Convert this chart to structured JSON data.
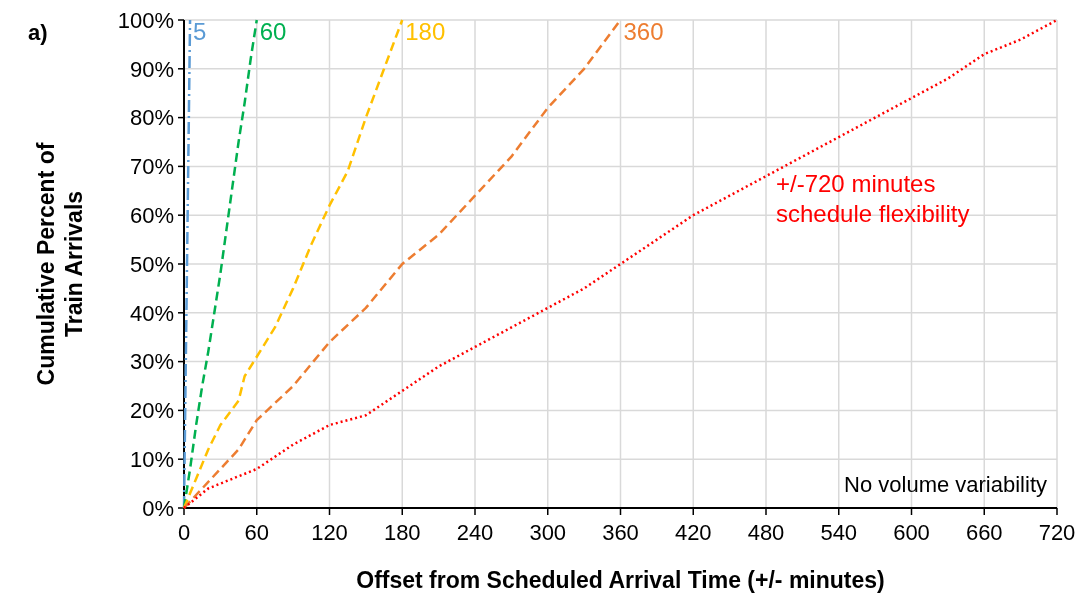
{
  "chart_data": {
    "type": "line",
    "xlabel": "Offset from Scheduled Arrival Time (+/- minutes)",
    "ylabel": "Cumulative Percent of Train Arrivals",
    "xlim": [
      0,
      720
    ],
    "xticks": [
      0,
      60,
      120,
      180,
      240,
      300,
      360,
      420,
      480,
      540,
      600,
      660,
      720
    ],
    "ylim": [
      0,
      100
    ],
    "yticks": [
      {
        "value": 0,
        "label": "0%"
      },
      {
        "value": 10,
        "label": "10%"
      },
      {
        "value": 20,
        "label": "20%"
      },
      {
        "value": 30,
        "label": "30%"
      },
      {
        "value": 40,
        "label": "40%"
      },
      {
        "value": 50,
        "label": "50%"
      },
      {
        "value": 60,
        "label": "60%"
      },
      {
        "value": 70,
        "label": "70%"
      },
      {
        "value": 80,
        "label": "80%"
      },
      {
        "value": 90,
        "label": "90%"
      },
      {
        "value": 100,
        "label": "100%"
      }
    ],
    "grid": true,
    "marker": "none",
    "annotations": [
      "a)",
      "No volume variability"
    ],
    "series": [
      {
        "name": "5",
        "color": "#5b9bd5",
        "line_style": "dashdot",
        "x": [
          0,
          1,
          2,
          3,
          4,
          5
        ],
        "values": [
          0,
          20,
          40,
          60,
          80,
          100
        ]
      },
      {
        "name": "60",
        "color": "#00b050",
        "line_style": "dashed",
        "x": [
          0,
          5,
          10,
          15,
          20,
          25,
          30,
          35,
          40,
          45,
          50,
          55,
          60
        ],
        "values": [
          0,
          8,
          17,
          25,
          32,
          40,
          48,
          57,
          66,
          75,
          83,
          92,
          100
        ]
      },
      {
        "name": "180",
        "color": "#ffc000",
        "line_style": "dashed",
        "x": [
          0,
          10,
          20,
          30,
          45,
          50,
          60,
          75,
          90,
          105,
          120,
          135,
          150,
          165,
          180
        ],
        "values": [
          0,
          6,
          12,
          17,
          22,
          27,
          31,
          37,
          45,
          54,
          62,
          69,
          80,
          90,
          100
        ]
      },
      {
        "name": "360",
        "color": "#ed7d31",
        "line_style": "dashed",
        "x": [
          0,
          15,
          30,
          45,
          60,
          90,
          120,
          150,
          180,
          210,
          240,
          270,
          300,
          330,
          360
        ],
        "values": [
          0,
          4,
          8,
          12,
          18,
          25,
          34,
          41,
          50,
          56,
          64,
          72,
          82,
          90,
          100
        ]
      },
      {
        "name": "+/-720 minutes schedule flexibility",
        "color": "#ff0000",
        "line_style": "dotted",
        "x": [
          0,
          20,
          40,
          60,
          90,
          120,
          150,
          180,
          210,
          240,
          270,
          300,
          330,
          360,
          390,
          420,
          450,
          480,
          510,
          540,
          570,
          600,
          630,
          660,
          690,
          720
        ],
        "values": [
          0,
          4,
          6,
          8,
          13,
          17,
          19,
          24,
          29,
          33,
          37,
          41,
          45,
          50,
          55,
          60,
          64,
          68,
          72,
          76,
          80,
          84,
          88,
          93,
          96,
          100
        ]
      }
    ]
  }
}
